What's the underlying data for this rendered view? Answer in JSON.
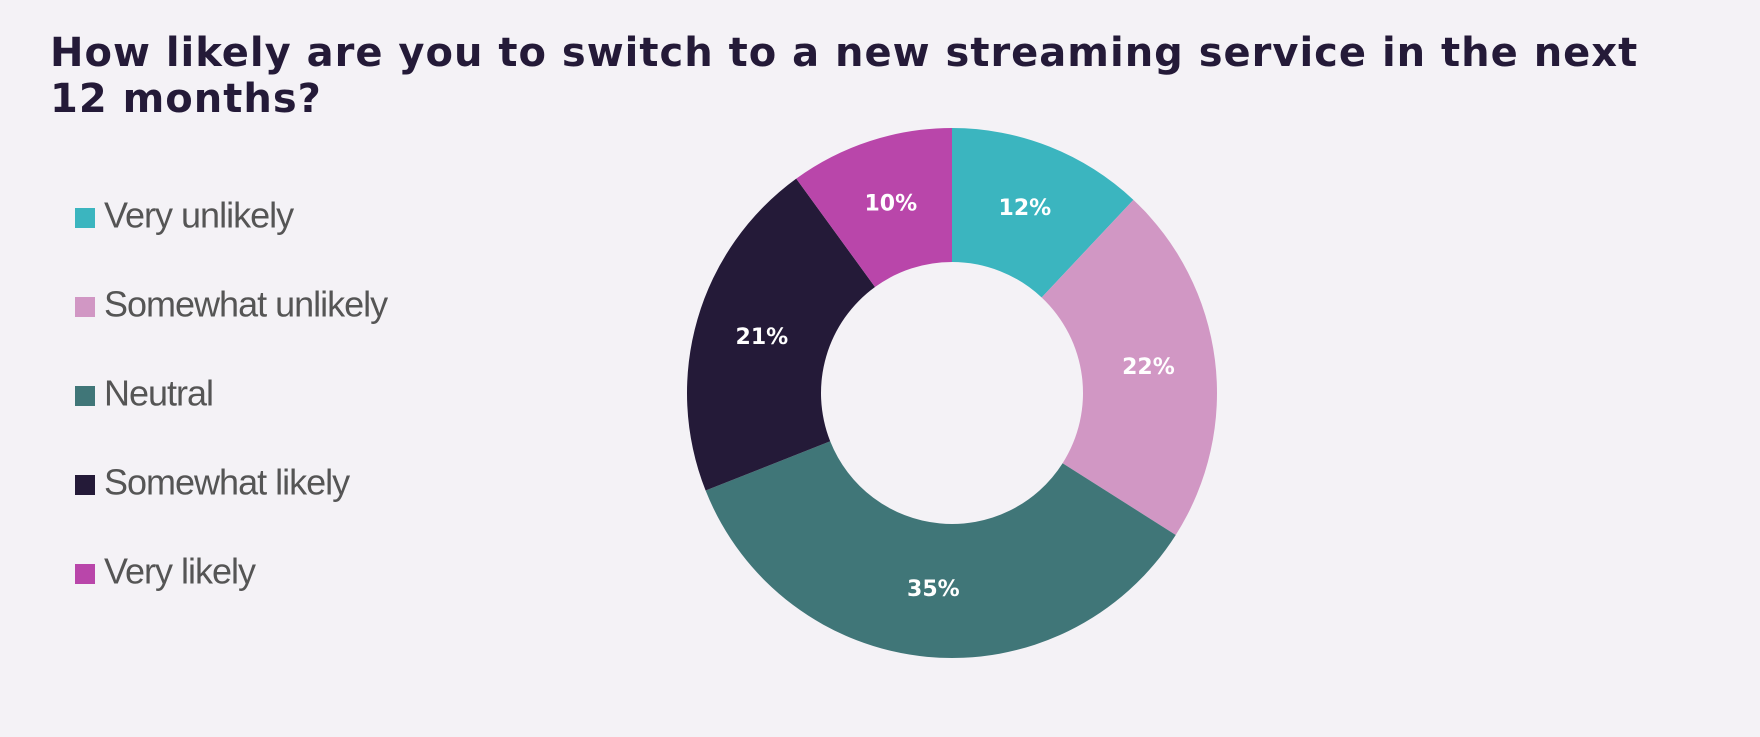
{
  "chart_data": {
    "type": "donut",
    "title": "How likely are you to switch to a new streaming service in the next 12 months?",
    "categories": [
      "Very unlikely",
      "Somewhat unlikely",
      "Neutral",
      "Somewhat likely",
      "Very likely"
    ],
    "values": [
      12,
      22,
      35,
      21,
      10
    ],
    "value_labels": [
      "12%",
      "22%",
      "35%",
      "21%",
      "10%"
    ],
    "colors": [
      "#3bb5bf",
      "#d197c4",
      "#407678",
      "#241a38",
      "#b946aa"
    ]
  }
}
